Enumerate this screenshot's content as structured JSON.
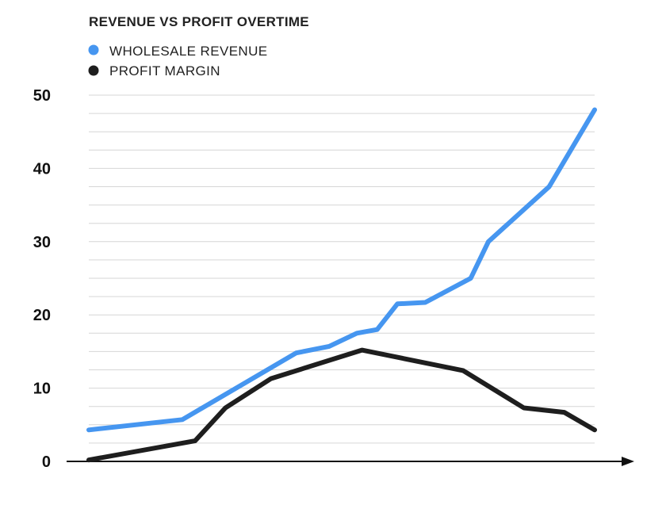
{
  "chart_data": {
    "type": "line",
    "title": "REVENUE VS PROFIT OVERTIME",
    "xlabel": "",
    "ylabel": "",
    "ylim": [
      0,
      50
    ],
    "yticks": [
      {
        "value": 0,
        "label": "0"
      },
      {
        "value": 10,
        "label": "10"
      },
      {
        "value": 20,
        "label": "20"
      },
      {
        "value": 30,
        "label": "30"
      },
      {
        "value": 40,
        "label": "40"
      },
      {
        "value": 50,
        "label": "50"
      }
    ],
    "grid_step": 2.5,
    "x": [
      0,
      17.5,
      23.5,
      30,
      35,
      40,
      45,
      50,
      55,
      59,
      60,
      63,
      70,
      73,
      80,
      87,
      90,
      100
    ],
    "series": [
      {
        "name": "WHOLESALE REVENUE",
        "color": "#4696f0",
        "x": [
          0,
          18.5,
          41,
          47.5,
          53,
          57,
          61,
          66.5,
          75.5,
          79,
          91,
          100
        ],
        "values": [
          4.3,
          5.7,
          14.8,
          15.7,
          17.5,
          18,
          21.5,
          21.7,
          25,
          30,
          37.5,
          48
        ]
      },
      {
        "name": "PROFIT MARGIN",
        "color": "#1e1e1e",
        "x": [
          0,
          21,
          27,
          36,
          54,
          74,
          86,
          94,
          100
        ],
        "values": [
          0.2,
          2.8,
          7.3,
          11.3,
          15.2,
          12.4,
          7.3,
          6.7,
          4.3
        ]
      }
    ]
  }
}
